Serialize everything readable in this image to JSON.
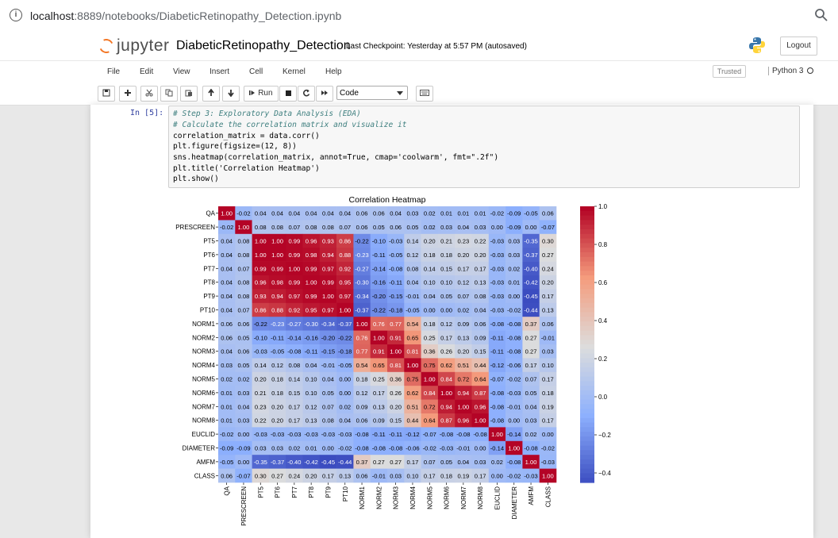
{
  "browser": {
    "host": "localhost",
    "url_rest": ":8889/notebooks/DiabeticRetinopathy_Detection.ipynb"
  },
  "header": {
    "logo_text": "jupyter",
    "notebook_name": "DiabeticRetinopathy_Detection",
    "checkpoint": "Last Checkpoint: Yesterday at 5:57 PM  (autosaved)",
    "logout_label": "Logout"
  },
  "menu": {
    "items": [
      "File",
      "Edit",
      "View",
      "Insert",
      "Cell",
      "Kernel",
      "Help"
    ],
    "trusted": "Trusted",
    "kernel": "Python 3"
  },
  "toolbar": {
    "run_label": "Run",
    "cell_type": "Code"
  },
  "cell": {
    "prompt": "In [5]:",
    "lines": [
      "# Step 3: Exploratory Data Analysis (EDA)",
      "# Calculate the correlation matrix and visualize it",
      "correlation_matrix = data.corr()",
      "plt.figure(figsize=(12, 8))",
      "sns.heatmap(correlation_matrix, annot=True, cmap='coolwarm', fmt=\".2f\")",
      "plt.title('Correlation Heatmap')",
      "plt.show()"
    ]
  },
  "chart_data": {
    "type": "heatmap",
    "title": "Correlation Heatmap",
    "labels": [
      "QA",
      "PRESCREEN",
      "PT5",
      "PT6",
      "PT7",
      "PT8",
      "PT9",
      "PT10",
      "NORM1",
      "NORM2",
      "NORM3",
      "NORM4",
      "NORM5",
      "NORM6",
      "NORM7",
      "NORM8",
      "EUCLID",
      "DIAMETER",
      "AMFM",
      "CLASS"
    ],
    "colorbar_ticks": [
      1.0,
      0.8,
      0.6,
      0.4,
      0.2,
      0.0,
      -0.2,
      -0.4
    ],
    "colorbar_range": [
      -0.45,
      1.0
    ],
    "cmap": "coolwarm",
    "matrix": [
      [
        1.0,
        -0.02,
        0.04,
        0.04,
        0.04,
        0.04,
        0.04,
        0.04,
        0.06,
        0.06,
        0.04,
        0.03,
        0.02,
        0.01,
        0.01,
        0.01,
        -0.02,
        -0.09,
        -0.05,
        0.06
      ],
      [
        -0.02,
        1.0,
        0.08,
        0.08,
        0.07,
        0.08,
        0.08,
        0.07,
        0.06,
        0.05,
        0.06,
        0.05,
        0.02,
        0.03,
        0.04,
        0.03,
        0.0,
        -0.09,
        -0.0,
        -0.07
      ],
      [
        0.04,
        0.08,
        1.0,
        1.0,
        0.99,
        0.96,
        0.93,
        0.86,
        -0.22,
        -0.1,
        -0.03,
        0.14,
        0.2,
        0.21,
        0.23,
        0.22,
        -0.03,
        0.03,
        -0.35,
        0.3
      ],
      [
        0.04,
        0.08,
        1.0,
        1.0,
        0.99,
        0.98,
        0.94,
        0.88,
        -0.23,
        -0.11,
        -0.05,
        0.12,
        0.18,
        0.18,
        0.2,
        0.2,
        -0.03,
        0.03,
        -0.37,
        0.27
      ],
      [
        0.04,
        0.07,
        0.99,
        0.99,
        1.0,
        0.99,
        0.97,
        0.92,
        -0.27,
        -0.14,
        -0.08,
        0.08,
        0.14,
        0.15,
        0.17,
        0.17,
        -0.03,
        0.02,
        -0.4,
        0.24
      ],
      [
        0.04,
        0.08,
        0.96,
        0.98,
        0.99,
        1.0,
        0.99,
        0.95,
        -0.3,
        -0.16,
        -0.11,
        0.04,
        0.1,
        0.1,
        0.12,
        0.13,
        -0.03,
        0.01,
        -0.42,
        0.2
      ],
      [
        0.04,
        0.08,
        0.93,
        0.94,
        0.97,
        0.99,
        1.0,
        0.97,
        -0.34,
        -0.2,
        -0.15,
        -0.01,
        0.04,
        0.05,
        0.07,
        0.08,
        -0.03,
        0.0,
        -0.45,
        0.17
      ],
      [
        0.04,
        0.07,
        0.86,
        0.88,
        0.92,
        0.95,
        0.97,
        1.0,
        -0.37,
        -0.22,
        -0.18,
        -0.05,
        0.0,
        0.0,
        0.02,
        0.04,
        -0.03,
        -0.02,
        -0.44,
        0.13
      ],
      [
        0.06,
        0.06,
        -0.22,
        -0.23,
        -0.27,
        -0.3,
        -0.34,
        -0.37,
        1.0,
        0.76,
        0.77,
        0.54,
        0.18,
        0.12,
        0.09,
        0.06,
        -0.08,
        -0.08,
        0.37,
        0.06
      ],
      [
        0.06,
        0.05,
        -0.1,
        -0.11,
        -0.14,
        -0.16,
        -0.2,
        -0.22,
        0.76,
        1.0,
        0.91,
        0.65,
        0.25,
        0.17,
        0.13,
        0.09,
        -0.11,
        -0.08,
        0.27,
        -0.01
      ],
      [
        0.04,
        0.06,
        -0.03,
        -0.05,
        -0.08,
        -0.11,
        -0.15,
        -0.18,
        0.77,
        0.91,
        1.0,
        0.81,
        0.36,
        0.26,
        0.2,
        0.15,
        -0.11,
        -0.08,
        0.27,
        0.03
      ],
      [
        0.03,
        0.05,
        0.14,
        0.12,
        0.08,
        0.04,
        -0.01,
        -0.05,
        0.54,
        0.65,
        0.81,
        1.0,
        0.75,
        0.62,
        0.51,
        0.44,
        -0.12,
        -0.06,
        0.17,
        0.1
      ],
      [
        0.02,
        0.02,
        0.2,
        0.18,
        0.14,
        0.1,
        0.04,
        0.0,
        0.18,
        0.25,
        0.36,
        0.75,
        1.0,
        0.84,
        0.72,
        0.64,
        -0.07,
        -0.02,
        0.07,
        0.17
      ],
      [
        0.01,
        0.03,
        0.21,
        0.18,
        0.15,
        0.1,
        0.05,
        0.0,
        0.12,
        0.17,
        0.26,
        0.62,
        0.84,
        1.0,
        0.94,
        0.87,
        -0.08,
        -0.03,
        0.05,
        0.18
      ],
      [
        0.01,
        0.04,
        0.23,
        0.2,
        0.17,
        0.12,
        0.07,
        0.02,
        0.09,
        0.13,
        0.2,
        0.51,
        0.72,
        0.94,
        1.0,
        0.96,
        -0.08,
        -0.01,
        0.04,
        0.19
      ],
      [
        0.01,
        0.03,
        0.22,
        0.2,
        0.17,
        0.13,
        0.08,
        0.04,
        0.06,
        0.09,
        0.15,
        0.44,
        0.64,
        0.87,
        0.96,
        1.0,
        -0.08,
        -0.0,
        0.03,
        0.17
      ],
      [
        -0.02,
        0.0,
        -0.03,
        -0.03,
        -0.03,
        -0.03,
        -0.03,
        -0.03,
        -0.08,
        -0.11,
        -0.11,
        -0.12,
        -0.07,
        -0.08,
        -0.08,
        -0.08,
        1.0,
        -0.14,
        0.02,
        0.0
      ],
      [
        -0.09,
        -0.09,
        0.03,
        0.03,
        0.02,
        0.01,
        0.0,
        -0.02,
        -0.08,
        -0.08,
        -0.08,
        -0.06,
        -0.02,
        -0.03,
        -0.01,
        -0.0,
        -0.14,
        1.0,
        -0.08,
        -0.02
      ],
      [
        -0.05,
        -0.0,
        -0.35,
        -0.37,
        -0.4,
        -0.42,
        -0.45,
        -0.44,
        0.37,
        0.27,
        0.27,
        0.17,
        0.07,
        0.05,
        0.04,
        0.03,
        0.02,
        -0.08,
        1.0,
        -0.03
      ],
      [
        0.06,
        -0.07,
        0.3,
        0.27,
        0.24,
        0.2,
        0.17,
        0.13,
        0.06,
        -0.01,
        0.03,
        0.1,
        0.17,
        0.18,
        0.19,
        0.17,
        0.0,
        -0.02,
        -0.03,
        1.0
      ]
    ]
  }
}
